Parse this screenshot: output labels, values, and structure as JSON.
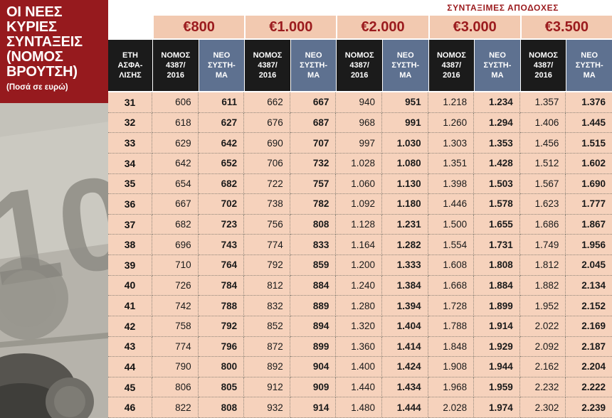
{
  "title": "ΟΙ ΝΕΕΣ\nΚΥΡΙΕΣ\nΣΥΝΤΑΞΕΙΣ\n(ΝΟΜΟΣ\nΒΡΟΥΤΣΗ)",
  "subtitle": "(Ποσά σε ευρώ)",
  "top_label": "ΣΥΝΤΑΞΙΜΕΣ ΑΠΟΔΟΧΕΣ",
  "colors": {
    "accent_red": "#961a1e",
    "row_bg": "#f6d2bc",
    "band_bg": "#f2c9b0",
    "header_black": "#1b1b1b",
    "header_blue": "#5e7190"
  },
  "chart_data": {
    "type": "table",
    "title": "ΟΙ ΝΕΕΣ ΚΥΡΙΕΣ ΣΥΝΤΑΞΕΙΣ (ΝΟΜΟΣ ΒΡΟΥΤΣΗ)",
    "units": "Ποσά σε ευρώ",
    "group_header": "ΣΥΝΤΑΞΙΜΕΣ ΑΠΟΔΟΧΕΣ",
    "salary_bands": [
      "€800",
      "€1.000",
      "€2.000",
      "€3.000",
      "€3.500"
    ],
    "years_header": "ΕΤΗ\nΑΣΦΑ-\nΛΙΣΗΣ",
    "law_header": "ΝΟΜΟΣ\n4387/\n2016",
    "new_header": "ΝΕΟ\nΣΥΣΤΗ-\nΜΑ",
    "sub_columns": [
      "ΝΟΜΟΣ 4387/2016",
      "ΝΕΟ ΣΥΣΤΗΜΑ"
    ],
    "rows": [
      {
        "years": "31",
        "values": [
          "606",
          "611",
          "662",
          "667",
          "940",
          "951",
          "1.218",
          "1.234",
          "1.357",
          "1.376"
        ]
      },
      {
        "years": "32",
        "values": [
          "618",
          "627",
          "676",
          "687",
          "968",
          "991",
          "1.260",
          "1.294",
          "1.406",
          "1.445"
        ]
      },
      {
        "years": "33",
        "values": [
          "629",
          "642",
          "690",
          "707",
          "997",
          "1.030",
          "1.303",
          "1.353",
          "1.456",
          "1.515"
        ]
      },
      {
        "years": "34",
        "values": [
          "642",
          "652",
          "706",
          "732",
          "1.028",
          "1.080",
          "1.351",
          "1.428",
          "1.512",
          "1.602"
        ]
      },
      {
        "years": "35",
        "values": [
          "654",
          "682",
          "722",
          "757",
          "1.060",
          "1.130",
          "1.398",
          "1.503",
          "1.567",
          "1.690"
        ]
      },
      {
        "years": "36",
        "values": [
          "667",
          "702",
          "738",
          "782",
          "1.092",
          "1.180",
          "1.446",
          "1.578",
          "1.623",
          "1.777"
        ]
      },
      {
        "years": "37",
        "values": [
          "682",
          "723",
          "756",
          "808",
          "1.128",
          "1.231",
          "1.500",
          "1.655",
          "1.686",
          "1.867"
        ]
      },
      {
        "years": "38",
        "values": [
          "696",
          "743",
          "774",
          "833",
          "1.164",
          "1.282",
          "1.554",
          "1.731",
          "1.749",
          "1.956"
        ]
      },
      {
        "years": "39",
        "values": [
          "710",
          "764",
          "792",
          "859",
          "1.200",
          "1.333",
          "1.608",
          "1.808",
          "1.812",
          "2.045"
        ]
      },
      {
        "years": "40",
        "values": [
          "726",
          "784",
          "812",
          "884",
          "1.240",
          "1.384",
          "1.668",
          "1.884",
          "1.882",
          "2.134"
        ]
      },
      {
        "years": "41",
        "values": [
          "742",
          "788",
          "832",
          "889",
          "1.280",
          "1.394",
          "1.728",
          "1.899",
          "1.952",
          "2.152"
        ]
      },
      {
        "years": "42",
        "values": [
          "758",
          "792",
          "852",
          "894",
          "1.320",
          "1.404",
          "1.788",
          "1.914",
          "2.022",
          "2.169"
        ]
      },
      {
        "years": "43",
        "values": [
          "774",
          "796",
          "872",
          "899",
          "1.360",
          "1.414",
          "1.848",
          "1.929",
          "2.092",
          "2.187"
        ]
      },
      {
        "years": "44",
        "values": [
          "790",
          "800",
          "892",
          "904",
          "1.400",
          "1.424",
          "1.908",
          "1.944",
          "2.162",
          "2.204"
        ]
      },
      {
        "years": "45",
        "values": [
          "806",
          "805",
          "912",
          "909",
          "1.440",
          "1.434",
          "1.968",
          "1.959",
          "2.232",
          "2.222"
        ]
      },
      {
        "years": "46",
        "values": [
          "822",
          "808",
          "932",
          "914",
          "1.480",
          "1.444",
          "2.028",
          "1.974",
          "2.302",
          "2.239"
        ]
      }
    ]
  }
}
